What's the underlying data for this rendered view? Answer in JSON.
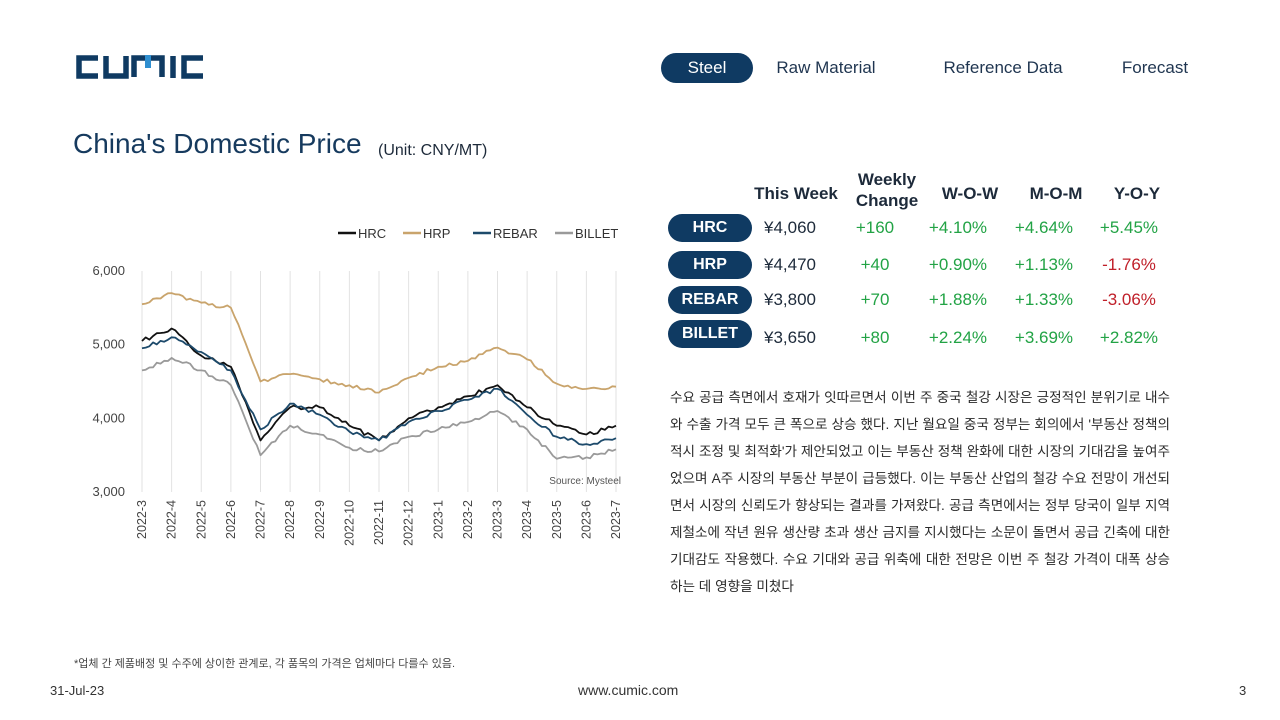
{
  "logo_text": "CUMIC",
  "nav": {
    "tabs": [
      {
        "label": "Steel",
        "active": true
      },
      {
        "label": "Raw Material",
        "active": false
      },
      {
        "label": "Reference Data",
        "active": false
      },
      {
        "label": "Forecast",
        "active": false
      }
    ]
  },
  "page_title": "China's Domestic Price",
  "unit": "(Unit: CNY/MT)",
  "table": {
    "headers": [
      "This Week",
      "Weekly Change",
      "W-O-W",
      "M-O-M",
      "Y-O-Y"
    ],
    "rows": [
      {
        "product": "HRC",
        "this_week": "¥4,060",
        "weekly_change": "+160",
        "wow": "+4.10%",
        "mom": "+4.64%",
        "yoy": "+5.45%"
      },
      {
        "product": "HRP",
        "this_week": "¥4,470",
        "weekly_change": "+40",
        "wow": "+0.90%",
        "mom": "+1.13%",
        "yoy": "-1.76%"
      },
      {
        "product": "REBAR",
        "this_week": "¥3,800",
        "weekly_change": "+70",
        "wow": "+1.88%",
        "mom": "+1.33%",
        "yoy": "-3.06%"
      },
      {
        "product": "BILLET",
        "this_week": "¥3,650",
        "weekly_change": "+80",
        "wow": "+2.24%",
        "mom": "+3.69%",
        "yoy": "+2.82%"
      }
    ]
  },
  "commentary": "수요 공급 측면에서 호재가 잇따르면서 이번 주 중국 철강 시장은 긍정적인 분위기로 내수와 수출 가격 모두 큰 폭으로 상승 했다. 지난 월요일 중국 정부는 회의에서 '부동산 정책의 적시 조정 및 최적화'가 제안되었고 이는 부동산 정책 완화에 대한 시장의 기대감을 높여주었으며 A주 시장의 부동산 부분이 급등했다. 이는 부동산 산업의 철강 수요 전망이 개선되면서 시장의 신뢰도가 향상되는 결과를 가져왔다. 공급 측면에서는 정부 당국이 일부 지역 제철소에 작년 원유 생산량 초과 생산 금지를 지시했다는 소문이 돌면서 공급 긴축에 대한 기대감도 작용했다. 수요 기대와 공급 위축에 대한 전망은 이번 주 철강 가격이 대폭 상승하는 데 영향을 미쳤다",
  "footnote": "*업체 간 제품배정 및 수주에 상이한 관계로, 각 품목의 가격은 업체마다 다를수 있음.",
  "footer": {
    "date": "31-Jul-23",
    "url": "www.cumic.com",
    "page": "3"
  },
  "colors": {
    "brand": "#0f3a62",
    "positive": "#22a345",
    "negative": "#c0202a"
  },
  "chart_data": {
    "type": "line",
    "x": [
      "2022-3",
      "2022-4",
      "2022-5",
      "2022-6",
      "2022-7",
      "2022-8",
      "2022-9",
      "2022-10",
      "2022-11",
      "2022-12",
      "2023-1",
      "2023-2",
      "2023-3",
      "2023-4",
      "2023-5",
      "2023-6",
      "2023-7"
    ],
    "ylim": [
      3000,
      6000
    ],
    "yticks": [
      "3,000",
      "4,000",
      "5,000",
      "6,000"
    ],
    "legend_position": "top-right",
    "source": "Source: Mysteel",
    "grid": "vertical",
    "series": [
      {
        "name": "HRC",
        "color": "#111111",
        "values": [
          5050,
          5220,
          4850,
          4700,
          3700,
          4150,
          4150,
          3900,
          3700,
          4000,
          4150,
          4300,
          4450,
          4150,
          3900,
          3780,
          3900
        ]
      },
      {
        "name": "HRP",
        "color": "#c9a46c",
        "values": [
          5550,
          5700,
          5570,
          5500,
          4500,
          4600,
          4530,
          4450,
          4350,
          4550,
          4700,
          4780,
          4960,
          4800,
          4470,
          4400,
          4430
        ]
      },
      {
        "name": "REBAR",
        "color": "#1d4a6b",
        "values": [
          4950,
          5100,
          4900,
          4650,
          3850,
          4200,
          4050,
          3820,
          3700,
          3950,
          4100,
          4250,
          4400,
          4050,
          3750,
          3650,
          3730
        ]
      },
      {
        "name": "BILLET",
        "color": "#9a9a9a",
        "values": [
          4650,
          4820,
          4650,
          4450,
          3500,
          3900,
          3780,
          3600,
          3550,
          3750,
          3850,
          3950,
          4100,
          3850,
          3450,
          3470,
          3580
        ]
      }
    ]
  }
}
